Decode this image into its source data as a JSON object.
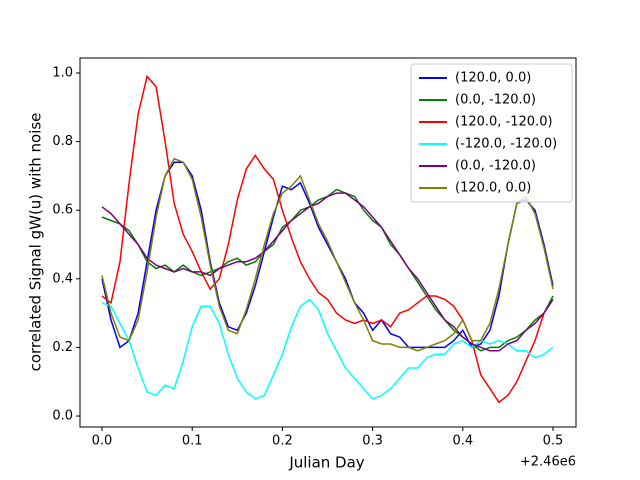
{
  "chart_data": {
    "type": "line",
    "xlabel": "Julian Day",
    "ylabel": "correlated Signal gW(u) with noise",
    "x_offset": "+2.46e6",
    "x": [
      0,
      0.01,
      0.02,
      0.03,
      0.04,
      0.05,
      0.06,
      0.07,
      0.08,
      0.09,
      0.1,
      0.11,
      0.12,
      0.13,
      0.14,
      0.15,
      0.16,
      0.17,
      0.18,
      0.19,
      0.2,
      0.21,
      0.22,
      0.23,
      0.24,
      0.25,
      0.26,
      0.27,
      0.28,
      0.29,
      0.3,
      0.31,
      0.32,
      0.33,
      0.34,
      0.35,
      0.36,
      0.37,
      0.38,
      0.39,
      0.4,
      0.41,
      0.42,
      0.43,
      0.44,
      0.45,
      0.46,
      0.47,
      0.48,
      0.49,
      0.5
    ],
    "xlim": [
      -0.0244,
      0.5255
    ],
    "ylim": [
      -0.032,
      1.0437
    ],
    "xticks": [
      {
        "value": 0,
        "label": "0.0"
      },
      0.1,
      0.2,
      0.3,
      0.4,
      0.5
    ],
    "yticks": [
      {
        "value": 0,
        "label": "0.0"
      },
      0.2,
      0.4,
      0.6,
      0.8,
      {
        "value": 1,
        "label": "1.0"
      }
    ],
    "legend": "upper right",
    "series": [
      {
        "name": "(120.0, 0.0)",
        "color": "#0000ff",
        "values": [
          0.4,
          0.28,
          0.2,
          0.22,
          0.3,
          0.45,
          0.6,
          0.7,
          0.74,
          0.74,
          0.7,
          0.6,
          0.45,
          0.33,
          0.26,
          0.25,
          0.3,
          0.38,
          0.48,
          0.58,
          0.67,
          0.66,
          0.68,
          0.62,
          0.55,
          0.5,
          0.45,
          0.4,
          0.33,
          0.3,
          0.25,
          0.28,
          0.24,
          0.23,
          0.2,
          0.2,
          0.2,
          0.2,
          0.2,
          0.22,
          0.25,
          0.2,
          0.21,
          0.25,
          0.35,
          0.5,
          0.62,
          0.63,
          0.6,
          0.5,
          0.38
        ]
      },
      {
        "name": "(0.0, -120.0)",
        "color": "#008000",
        "values": [
          0.58,
          0.57,
          0.56,
          0.54,
          0.5,
          0.45,
          0.43,
          0.44,
          0.42,
          0.44,
          0.42,
          0.41,
          0.42,
          0.43,
          0.45,
          0.46,
          0.44,
          0.45,
          0.48,
          0.5,
          0.55,
          0.57,
          0.6,
          0.61,
          0.63,
          0.64,
          0.66,
          0.65,
          0.64,
          0.6,
          0.57,
          0.55,
          0.5,
          0.47,
          0.43,
          0.39,
          0.35,
          0.31,
          0.28,
          0.25,
          0.23,
          0.21,
          0.19,
          0.2,
          0.2,
          0.22,
          0.23,
          0.25,
          0.28,
          0.3,
          0.35
        ]
      },
      {
        "name": "(120.0, -120.0)",
        "color": "#ff0000",
        "values": [
          0.35,
          0.33,
          0.45,
          0.68,
          0.88,
          0.99,
          0.96,
          0.8,
          0.62,
          0.53,
          0.48,
          0.42,
          0.37,
          0.4,
          0.5,
          0.63,
          0.72,
          0.76,
          0.72,
          0.69,
          0.6,
          0.52,
          0.45,
          0.4,
          0.36,
          0.34,
          0.3,
          0.28,
          0.27,
          0.28,
          0.27,
          0.28,
          0.26,
          0.3,
          0.31,
          0.33,
          0.35,
          0.35,
          0.34,
          0.32,
          0.28,
          0.22,
          0.12,
          0.08,
          0.04,
          0.06,
          0.1,
          0.16,
          0.22,
          0.3,
          0.34
        ]
      },
      {
        "name": "(-120.0, -120.0)",
        "color": "#00ffff",
        "values": [
          0.33,
          0.32,
          0.27,
          0.22,
          0.14,
          0.07,
          0.06,
          0.09,
          0.08,
          0.16,
          0.26,
          0.32,
          0.32,
          0.27,
          0.18,
          0.11,
          0.07,
          0.05,
          0.06,
          0.12,
          0.18,
          0.26,
          0.32,
          0.34,
          0.31,
          0.24,
          0.19,
          0.14,
          0.11,
          0.08,
          0.05,
          0.06,
          0.08,
          0.11,
          0.14,
          0.14,
          0.17,
          0.18,
          0.18,
          0.21,
          0.22,
          0.2,
          0.22,
          0.21,
          0.22,
          0.21,
          0.19,
          0.19,
          0.17,
          0.18,
          0.2
        ]
      },
      {
        "name": "(0.0, -120.0)",
        "color": "#800080",
        "values": [
          0.61,
          0.59,
          0.56,
          0.53,
          0.5,
          0.46,
          0.44,
          0.43,
          0.42,
          0.43,
          0.42,
          0.42,
          0.41,
          0.43,
          0.44,
          0.45,
          0.45,
          0.46,
          0.48,
          0.51,
          0.54,
          0.57,
          0.59,
          0.61,
          0.62,
          0.64,
          0.65,
          0.65,
          0.63,
          0.61,
          0.58,
          0.55,
          0.51,
          0.47,
          0.43,
          0.4,
          0.36,
          0.32,
          0.28,
          0.26,
          0.23,
          0.21,
          0.2,
          0.19,
          0.19,
          0.21,
          0.22,
          0.25,
          0.27,
          0.3,
          0.34
        ]
      },
      {
        "name": "(120.0, 0.0)",
        "color": "#808000",
        "values": [
          0.41,
          0.3,
          0.23,
          0.22,
          0.28,
          0.42,
          0.58,
          0.7,
          0.75,
          0.74,
          0.69,
          0.58,
          0.44,
          0.32,
          0.25,
          0.24,
          0.31,
          0.4,
          0.5,
          0.59,
          0.65,
          0.67,
          0.7,
          0.63,
          0.56,
          0.51,
          0.45,
          0.39,
          0.33,
          0.28,
          0.22,
          0.21,
          0.21,
          0.2,
          0.2,
          0.19,
          0.2,
          0.21,
          0.22,
          0.24,
          0.28,
          0.22,
          0.22,
          0.27,
          0.37,
          0.5,
          0.62,
          0.64,
          0.59,
          0.49,
          0.37
        ]
      }
    ]
  }
}
